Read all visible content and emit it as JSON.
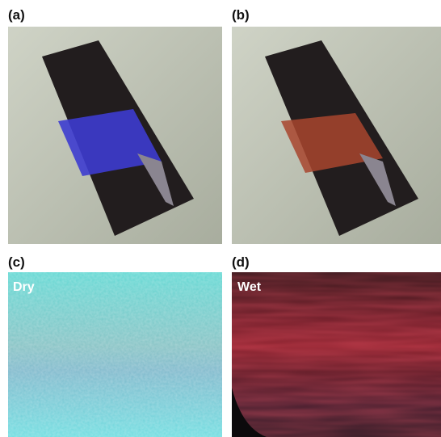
{
  "panels": [
    {
      "label": "(a)"
    },
    {
      "label": "(b)"
    },
    {
      "label": "(c)",
      "caption": "Dry"
    },
    {
      "label": "(d)",
      "caption": "Wet"
    }
  ]
}
